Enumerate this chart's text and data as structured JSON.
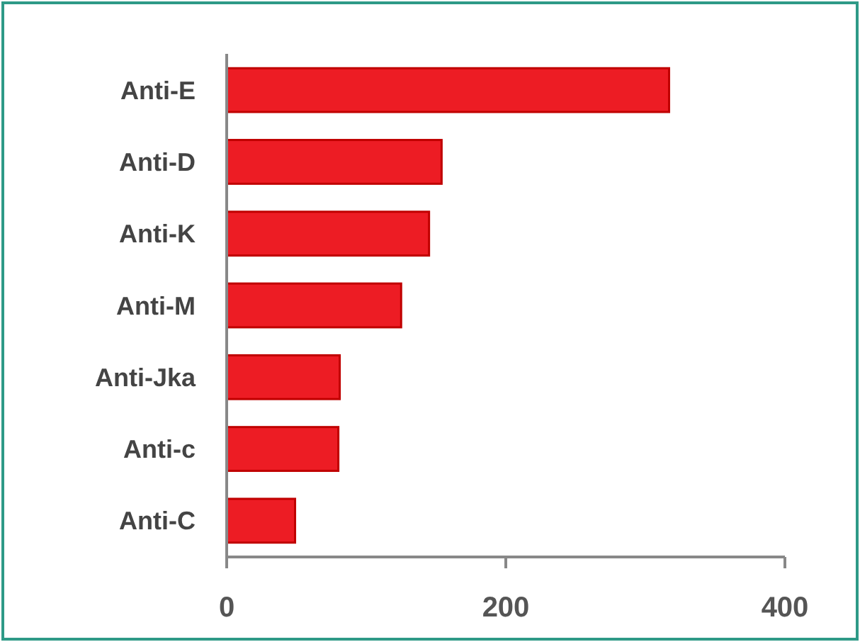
{
  "chart_data": {
    "type": "bar",
    "orientation": "horizontal",
    "categories": [
      "Anti-E",
      "Anti-D",
      "Anti-K",
      "Anti-M",
      "Anti-Jka",
      "Anti-c",
      "Anti-C"
    ],
    "values": [
      317,
      154,
      145,
      125,
      81,
      80,
      49
    ],
    "color": "#ed1c24",
    "xlim": [
      0,
      400
    ],
    "xticks": [
      0,
      200,
      400
    ],
    "grid": false
  }
}
